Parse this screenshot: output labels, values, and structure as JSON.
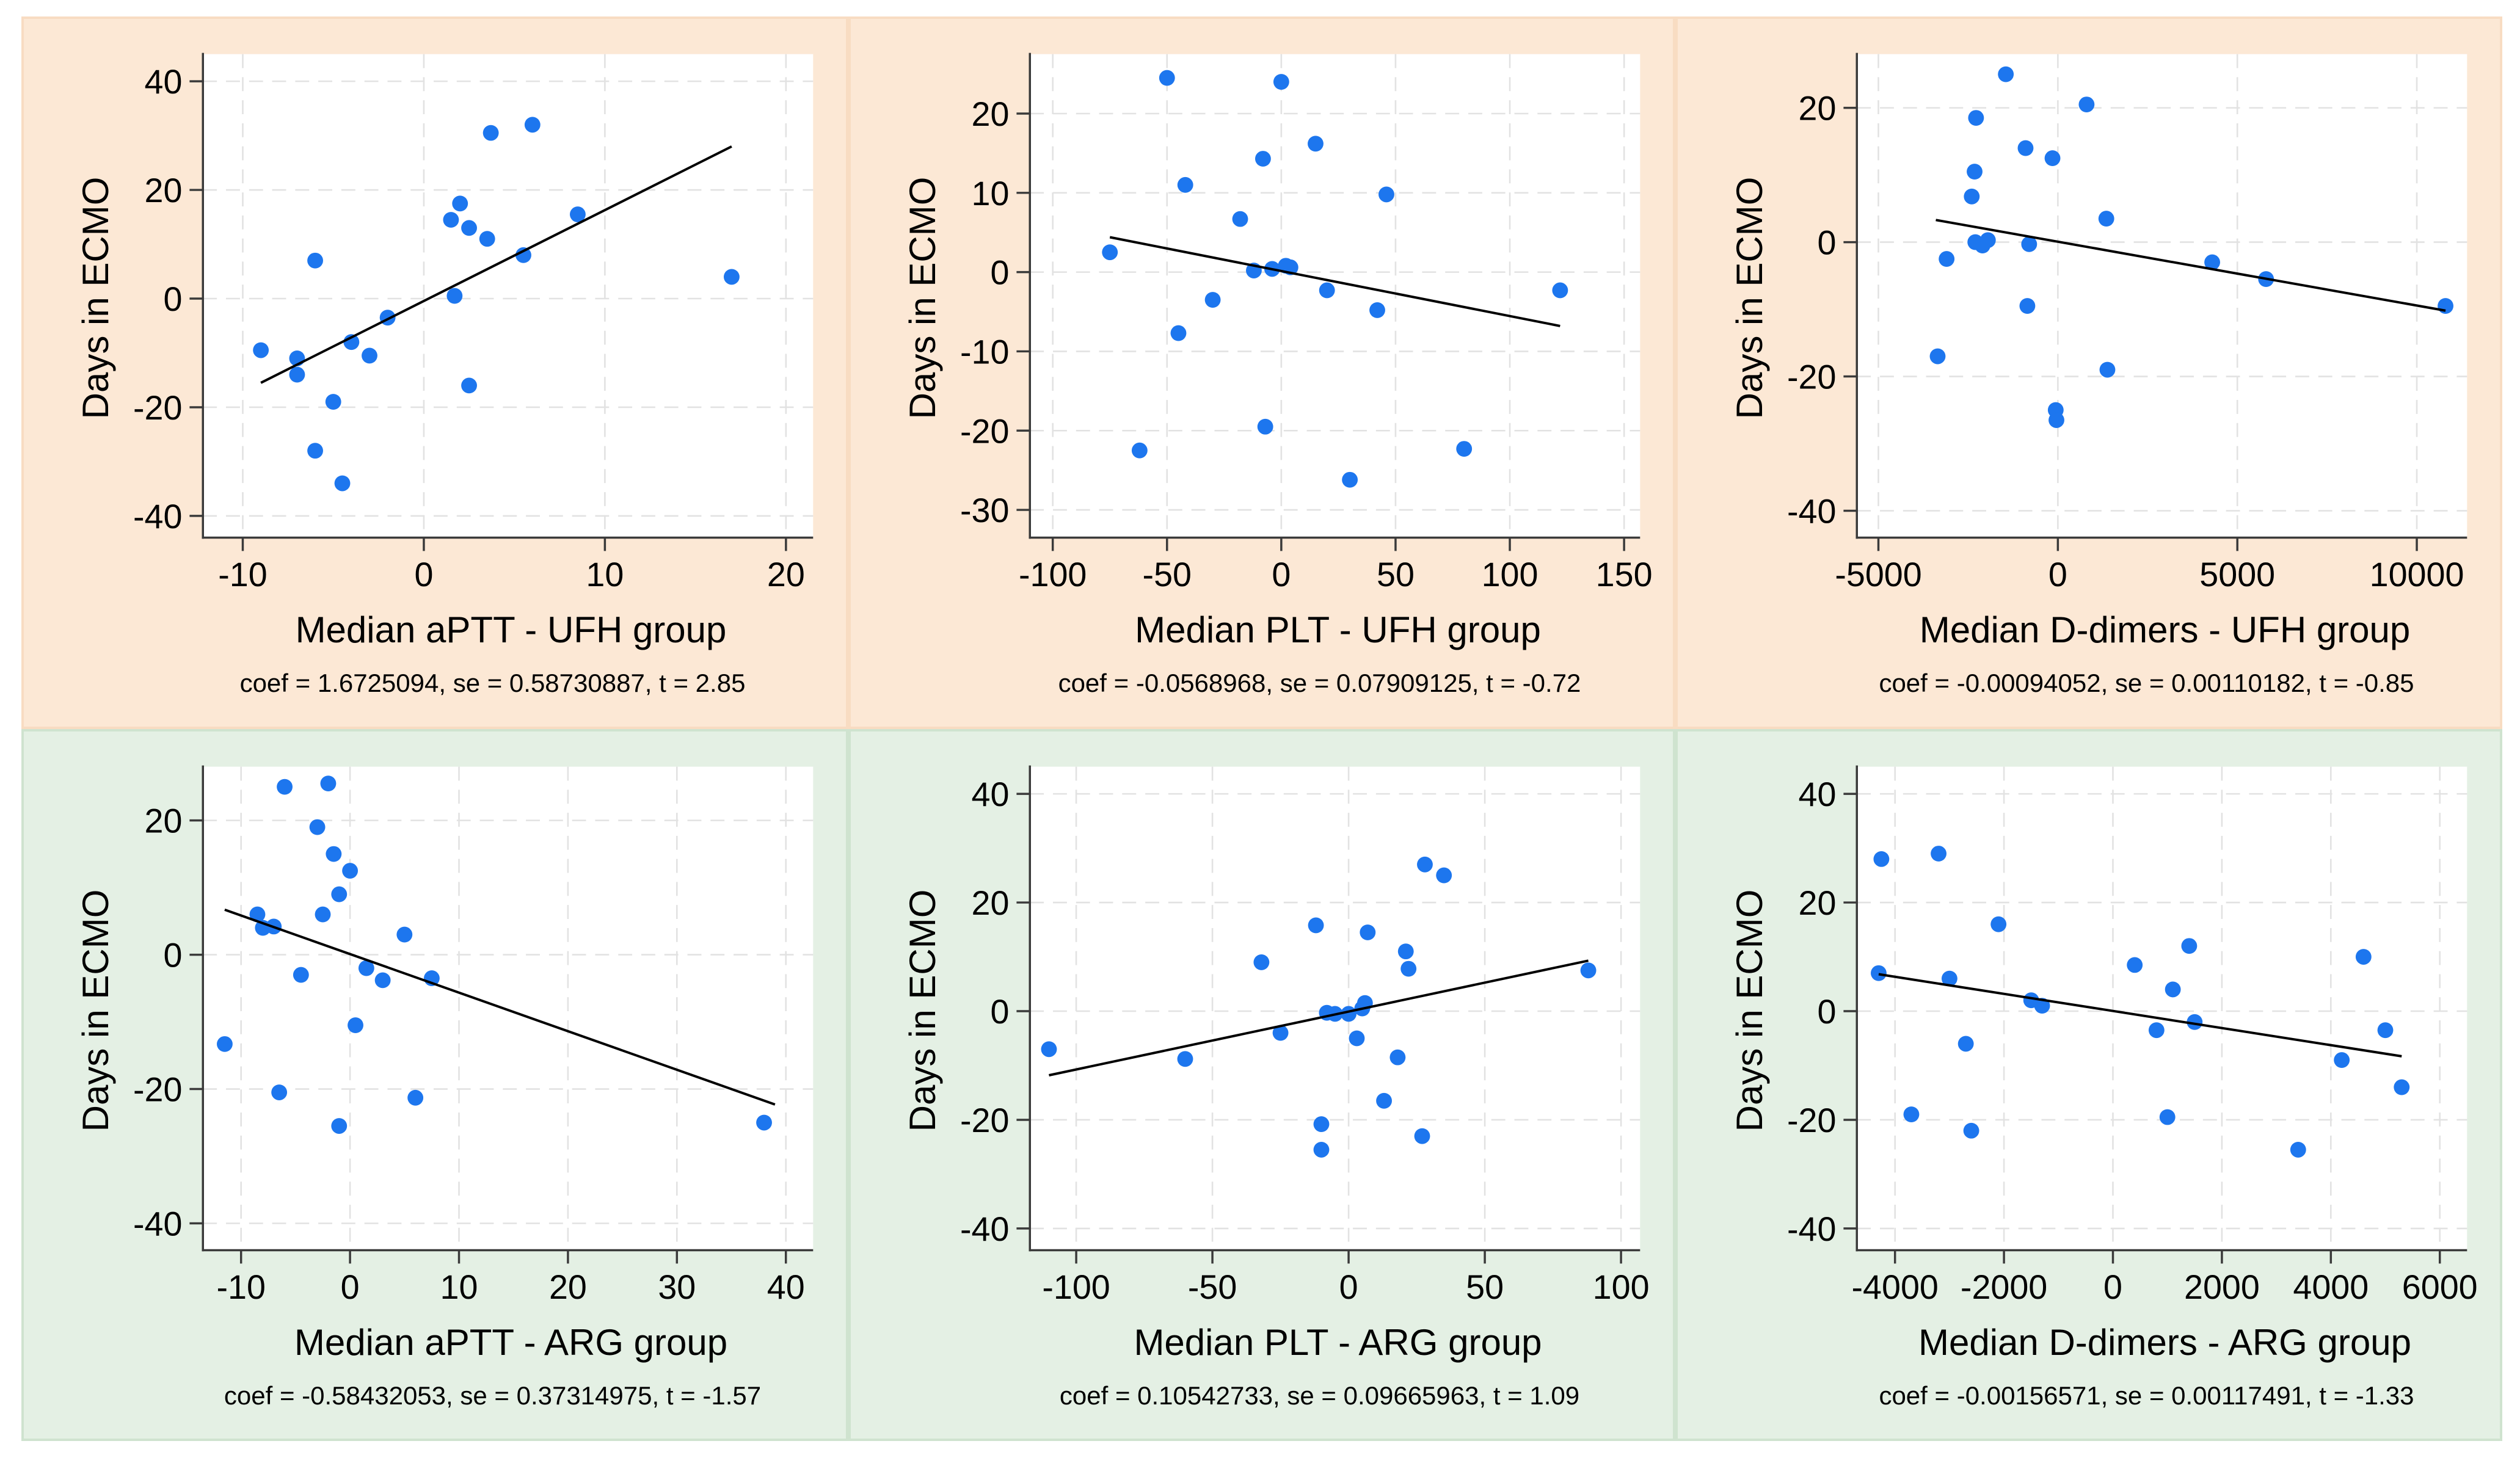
{
  "figure": {
    "shared_ylabel": "Days in ECMO",
    "rows": [
      {
        "group": "UFH group",
        "panel_bg": "#fce8d5",
        "panel_border": "#f8dcc2"
      },
      {
        "group": "ARG group",
        "panel_bg": "#e4f0e4",
        "panel_border": "#cfe3cf"
      }
    ]
  },
  "theme": {
    "page_bg": "#ffffff",
    "plot_bg": "#ffffff",
    "dot_color": "#1d76ee",
    "fit_line_color": "#000000",
    "axis_color": "#3a3a3a",
    "grid_color": "#e2e2e2",
    "text_color": "#000000"
  },
  "chart_data": [
    {
      "type": "scatter",
      "title": "",
      "xlabel": "Median aPTT - UFH group",
      "ylabel": "Days in ECMO",
      "caption": "coef = 1.6725094, se = 0.58730887, t = 2.85",
      "coef": 1.6725094,
      "se": 0.58730887,
      "t": 2.85,
      "panel_bg": "#fce8d5",
      "panel_border": "#f8dcc2",
      "grid": true,
      "legend": "none",
      "xlim": [
        -12.2,
        21.5
      ],
      "ylim": [
        -44,
        45
      ],
      "xticks": [
        -10,
        0,
        10,
        20
      ],
      "yticks": [
        -40,
        -20,
        0,
        20,
        40
      ],
      "points": [
        [
          -9,
          -9.5
        ],
        [
          -7,
          -11
        ],
        [
          -7,
          -14
        ],
        [
          -6,
          7
        ],
        [
          -6,
          -28
        ],
        [
          -5,
          -19
        ],
        [
          -4.5,
          -34
        ],
        [
          -4,
          -8
        ],
        [
          -3,
          -10.5
        ],
        [
          -2,
          -3.5
        ],
        [
          1.5,
          14.5
        ],
        [
          1.7,
          0.5
        ],
        [
          2,
          17.5
        ],
        [
          2.5,
          13
        ],
        [
          2.5,
          -16
        ],
        [
          3.5,
          11
        ],
        [
          3.7,
          30.5
        ],
        [
          5.5,
          8
        ],
        [
          6,
          32
        ],
        [
          8.5,
          15.5
        ],
        [
          17,
          4
        ]
      ],
      "fit_line": {
        "x1": -9,
        "y1": -15.5,
        "x2": 17,
        "y2": 28
      }
    },
    {
      "type": "scatter",
      "title": "",
      "xlabel": "Median PLT - UFH group",
      "ylabel": "Days in ECMO",
      "caption": "coef = -0.0568968, se = 0.07909125, t = -0.72",
      "coef": -0.0568968,
      "se": 0.07909125,
      "t": -0.72,
      "panel_bg": "#fce8d5",
      "panel_border": "#f8dcc2",
      "grid": true,
      "legend": "none",
      "xlim": [
        -110,
        157
      ],
      "ylim": [
        -33.5,
        27.5
      ],
      "xticks": [
        -100,
        -50,
        0,
        50,
        100,
        150
      ],
      "yticks": [
        -30,
        -20,
        -10,
        0,
        10,
        20
      ],
      "points": [
        [
          -75,
          2.5
        ],
        [
          -62,
          -22.5
        ],
        [
          -50,
          24.5
        ],
        [
          -45,
          -7.7
        ],
        [
          -42,
          11
        ],
        [
          -30,
          -3.5
        ],
        [
          -18,
          6.7
        ],
        [
          -12,
          0.2
        ],
        [
          -8,
          14.3
        ],
        [
          -7,
          -19.5
        ],
        [
          -4,
          0.4
        ],
        [
          0,
          24
        ],
        [
          2,
          0.8
        ],
        [
          4,
          0.6
        ],
        [
          15,
          16.2
        ],
        [
          20,
          -2.3
        ],
        [
          30,
          -26.2
        ],
        [
          42,
          -4.8
        ],
        [
          46,
          9.8
        ],
        [
          80,
          -22.3
        ],
        [
          122,
          -2.3
        ]
      ],
      "fit_line": {
        "x1": -75,
        "y1": 4.4,
        "x2": 122,
        "y2": -6.8
      }
    },
    {
      "type": "scatter",
      "title": "",
      "xlabel": "Median D-dimers - UFH group",
      "ylabel": "Days in ECMO",
      "caption": "coef = -0.00094052, se = 0.00110182, t = -0.85",
      "coef": -0.00094052,
      "se": 0.00110182,
      "t": -0.85,
      "panel_bg": "#fce8d5",
      "panel_border": "#f8dcc2",
      "grid": true,
      "legend": "none",
      "xlim": [
        -5600,
        11400
      ],
      "ylim": [
        -44,
        28
      ],
      "xticks": [
        -5000,
        0,
        5000,
        10000
      ],
      "yticks": [
        -40,
        -20,
        0,
        20
      ],
      "points": [
        [
          -3350,
          -17
        ],
        [
          -3100,
          -2.5
        ],
        [
          -2400,
          6.8
        ],
        [
          -2320,
          10.5
        ],
        [
          -2280,
          18.5
        ],
        [
          -2300,
          0
        ],
        [
          -2100,
          -0.5
        ],
        [
          -1950,
          0.3
        ],
        [
          -1450,
          25
        ],
        [
          -900,
          14
        ],
        [
          -850,
          -9.5
        ],
        [
          -800,
          -0.3
        ],
        [
          -150,
          12.5
        ],
        [
          -60,
          -25
        ],
        [
          -40,
          -26.5
        ],
        [
          800,
          20.5
        ],
        [
          1350,
          3.5
        ],
        [
          1380,
          -19
        ],
        [
          4300,
          -3
        ],
        [
          5800,
          -5.5
        ],
        [
          10800,
          -9.5
        ]
      ],
      "fit_line": {
        "x1": -3400,
        "y1": 3.3,
        "x2": 10800,
        "y2": -10.2
      }
    },
    {
      "type": "scatter",
      "title": "",
      "xlabel": "Median aPTT - ARG group",
      "ylabel": "Days in ECMO",
      "caption": "coef = -0.58432053, se = 0.37314975, t = -1.57",
      "coef": -0.58432053,
      "se": 0.37314975,
      "t": -1.57,
      "panel_bg": "#e4f0e4",
      "panel_border": "#cfe3cf",
      "grid": true,
      "legend": "none",
      "xlim": [
        -13.5,
        42.5
      ],
      "ylim": [
        -44,
        28
      ],
      "xticks": [
        -10,
        0,
        10,
        20,
        30,
        40
      ],
      "yticks": [
        -40,
        -20,
        0,
        20
      ],
      "points": [
        [
          -11.5,
          -13.3
        ],
        [
          -8.5,
          6
        ],
        [
          -8,
          4
        ],
        [
          -7,
          4.2
        ],
        [
          -6.5,
          -20.5
        ],
        [
          -6,
          25
        ],
        [
          -4.5,
          -3
        ],
        [
          -3,
          19
        ],
        [
          -2.5,
          6
        ],
        [
          -2,
          25.5
        ],
        [
          -1.5,
          15
        ],
        [
          -1,
          9
        ],
        [
          -1,
          -25.5
        ],
        [
          0,
          12.5
        ],
        [
          0.5,
          -10.5
        ],
        [
          1.5,
          -2
        ],
        [
          3,
          -3.8
        ],
        [
          5,
          3
        ],
        [
          6,
          -21.3
        ],
        [
          7.5,
          -3.5
        ],
        [
          38,
          -25
        ]
      ],
      "fit_line": {
        "x1": -11.5,
        "y1": 6.7,
        "x2": 39,
        "y2": -22.3
      }
    },
    {
      "type": "scatter",
      "title": "",
      "xlabel": "Median PLT - ARG group",
      "ylabel": "Days in ECMO",
      "caption": "coef = 0.10542733, se = 0.09665963, t = 1.09",
      "coef": 0.10542733,
      "se": 0.09665963,
      "t": 1.09,
      "panel_bg": "#e4f0e4",
      "panel_border": "#cfe3cf",
      "grid": true,
      "legend": "none",
      "xlim": [
        -117,
        107
      ],
      "ylim": [
        -44,
        45
      ],
      "xticks": [
        -100,
        -50,
        0,
        50,
        100
      ],
      "yticks": [
        -40,
        -20,
        0,
        20,
        40
      ],
      "points": [
        [
          -110,
          -7
        ],
        [
          -60,
          -8.8
        ],
        [
          -32,
          9
        ],
        [
          -25,
          -4
        ],
        [
          -12,
          15.8
        ],
        [
          -10,
          -20.8
        ],
        [
          -10,
          -25.5
        ],
        [
          -8,
          -0.3
        ],
        [
          -5,
          -0.5
        ],
        [
          0,
          -0.5
        ],
        [
          3,
          -5
        ],
        [
          5,
          0.5
        ],
        [
          6,
          1.5
        ],
        [
          7,
          14.5
        ],
        [
          13,
          -16.5
        ],
        [
          18,
          -8.5
        ],
        [
          21,
          11
        ],
        [
          22,
          7.8
        ],
        [
          27,
          -23
        ],
        [
          28,
          27
        ],
        [
          35,
          25
        ],
        [
          88,
          7.5
        ]
      ],
      "fit_line": {
        "x1": -110,
        "y1": -11.8,
        "x2": 88,
        "y2": 9.3
      }
    },
    {
      "type": "scatter",
      "title": "",
      "xlabel": "Median D-dimers - ARG group",
      "ylabel": "Days in ECMO",
      "caption": "coef = -0.00156571, se = 0.00117491, t = -1.33",
      "coef": -0.00156571,
      "se": 0.00117491,
      "t": -1.33,
      "panel_bg": "#e4f0e4",
      "panel_border": "#cfe3cf",
      "grid": true,
      "legend": "none",
      "xlim": [
        -4700,
        6500
      ],
      "ylim": [
        -44,
        45
      ],
      "xticks": [
        -4000,
        -2000,
        0,
        2000,
        4000,
        6000
      ],
      "yticks": [
        -40,
        -20,
        0,
        20,
        40
      ],
      "points": [
        [
          -4300,
          7
        ],
        [
          -4250,
          28
        ],
        [
          -3700,
          -19
        ],
        [
          -3200,
          29
        ],
        [
          -3000,
          6
        ],
        [
          -2700,
          -6
        ],
        [
          -2600,
          -22
        ],
        [
          -2100,
          16
        ],
        [
          -1500,
          2
        ],
        [
          -1300,
          1
        ],
        [
          400,
          8.5
        ],
        [
          800,
          -3.5
        ],
        [
          1000,
          -19.5
        ],
        [
          1100,
          4
        ],
        [
          1400,
          12
        ],
        [
          1500,
          -2
        ],
        [
          3400,
          -25.5
        ],
        [
          4200,
          -9
        ],
        [
          4600,
          10
        ],
        [
          5000,
          -3.5
        ],
        [
          5300,
          -14
        ]
      ],
      "fit_line": {
        "x1": -4300,
        "y1": 6.8,
        "x2": 5300,
        "y2": -8.3
      }
    }
  ]
}
